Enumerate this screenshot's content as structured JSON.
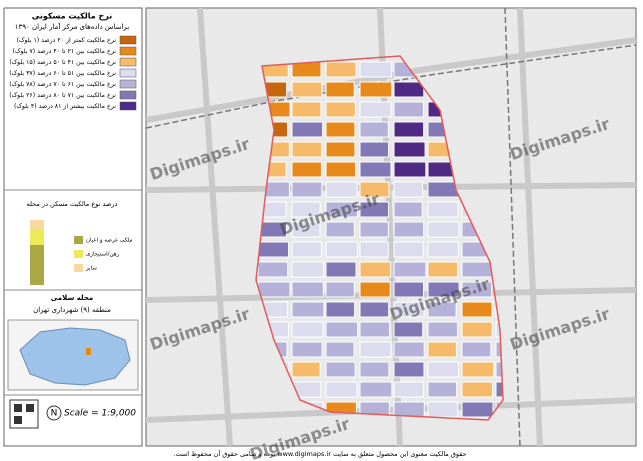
{
  "panel": {
    "title": "نرخ مالکیت مسکونی",
    "subtitle": "براساس داده‌های مرکز آمار ایران ۱۳۹۰",
    "legend": [
      {
        "label": "نرخ مالکیت کمتر از ۲۰ درصد (۱ بلوک)",
        "color": "#c8650f"
      },
      {
        "label": "نرخ مالکیت بین ۲۱ تا ۴۰ درصد (۷ بلوک)",
        "color": "#e8891b"
      },
      {
        "label": "نرخ مالکیت بین ۴۱ تا ۵۰ درصد (۱۵ بلوک)",
        "color": "#f6bb6a"
      },
      {
        "label": "نرخ مالکیت بین ۵۱ تا ۶۰ درصد (۳۷ بلوک)",
        "color": "#dddcee"
      },
      {
        "label": "نرخ مالکیت بین ۶۱ تا ۷۰ درصد (۷۸ بلوک)",
        "color": "#b6b1d9"
      },
      {
        "label": "نرخ مالکیت بین ۷۱ تا ۸۰ درصد (۲۶ بلوک)",
        "color": "#8378b6"
      },
      {
        "label": "نرخ مالکیت بیشتر از ۸۱ درصد (۴ بلوک)",
        "color": "#4f2a85"
      }
    ],
    "ownership_title": "درصد نوع مالکیت مسکن در محله",
    "ownership_legend": [
      {
        "label": "ملکی عرصه و اعیان",
        "color": "#a9a845"
      },
      {
        "label": "رهن/استیجاری",
        "color": "#ecea5a"
      },
      {
        "label": "سایر",
        "color": "#f7d9a0"
      }
    ],
    "neighborhood": "محله سلامی",
    "district": "منطقه (۹) شهرداری تهران",
    "north_label": "N",
    "scale": "Scale = 1:9,000"
  },
  "watermarks": [
    "Digimaps.ir",
    "Digimaps.ir",
    "Digimaps.ir",
    "Digimaps.ir",
    "Digimaps.ir",
    "Digimaps.ir",
    "Digimaps.ir"
  ],
  "footer": "حقوق مالکیت معنوی این محصول متعلق به سایت www.digimaps.ir بوده و تمامی حقوق آن محفوظ است."
}
